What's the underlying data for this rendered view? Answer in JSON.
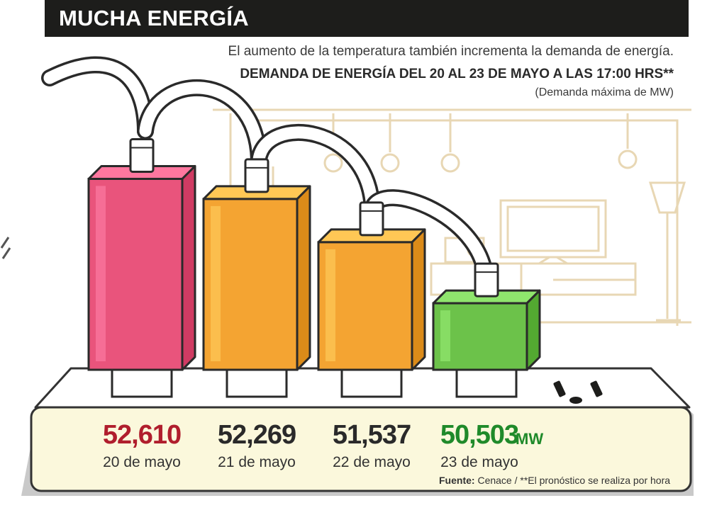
{
  "header": {
    "title": "MUCHA ENERGÍA"
  },
  "intro": "El aumento de la temperatura también incrementa la demanda de energía.",
  "chart_data": {
    "type": "bar",
    "title": "DEMANDA DE ENERGÍA DEL 20 AL 23 DE MAYO A LAS 17:00 HRS**",
    "subtitle": "(Demanda máxima de MW)",
    "unit": "MW",
    "categories": [
      "20 de mayo",
      "21 de mayo",
      "22 de mayo",
      "23 de mayo"
    ],
    "values": [
      52610,
      52269,
      51537,
      50503
    ],
    "value_labels": [
      "52,610",
      "52,269",
      "51,537",
      "50,503"
    ],
    "colors": [
      "#e9547c",
      "#f4a432",
      "#f4a432",
      "#6cc24a"
    ],
    "value_colors": [
      "#b01e2d",
      "#2a2a2a",
      "#2a2a2a",
      "#1f8a2a"
    ]
  },
  "footer": {
    "source_label": "Fuente:",
    "source_text": "Cenace  / **El pronóstico se realiza por hora"
  }
}
